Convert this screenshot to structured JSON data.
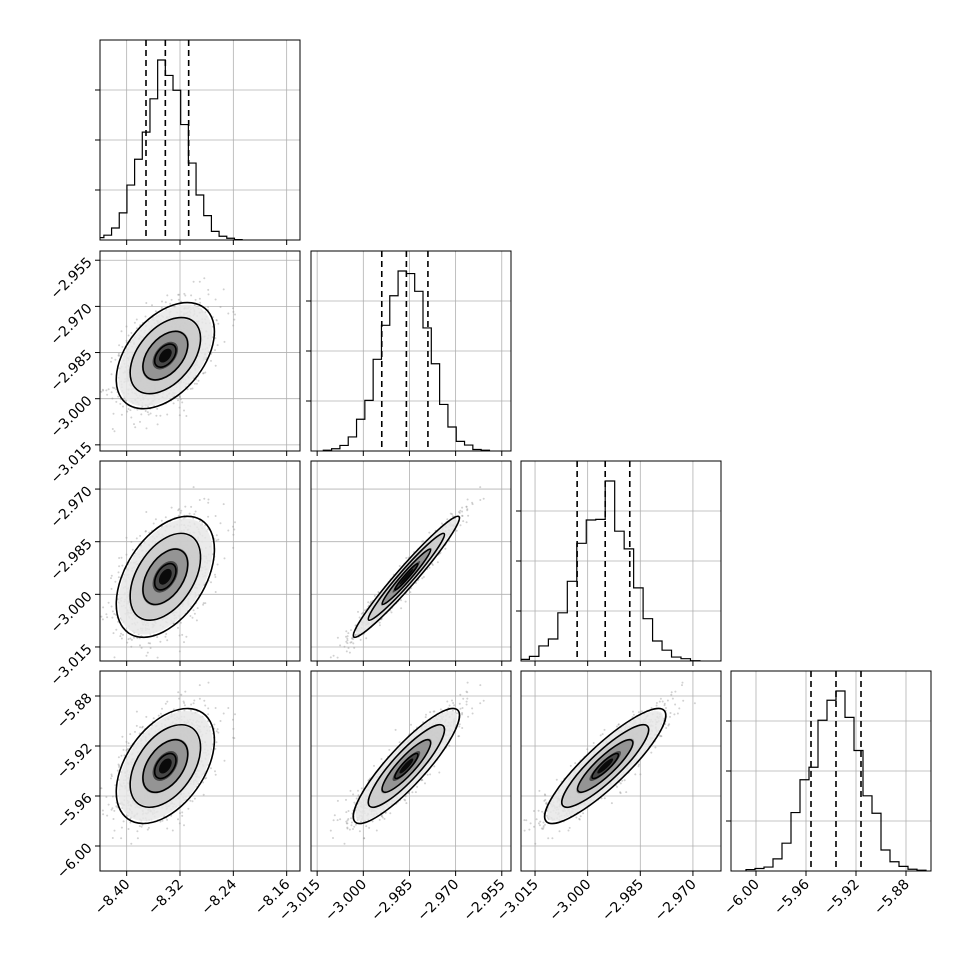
{
  "chart_data": {
    "type": "scatter",
    "title": "",
    "parameters": [
      {
        "label": "",
        "range": [
          -8.44,
          -8.14
        ],
        "ticks": [
          "−8.40",
          "−8.32",
          "−8.24",
          "−8.16"
        ],
        "tick_values": [
          -8.4,
          -8.32,
          -8.24,
          -8.16
        ],
        "quantiles": [
          -8.371,
          -8.342,
          -8.307
        ]
      },
      {
        "label": "",
        "range": [
          -3.017,
          -2.952
        ],
        "ticks": [
          "−3.015",
          "−3.000",
          "−2.985",
          "−2.970",
          "−2.955"
        ],
        "tick_values": [
          -3.015,
          -3.0,
          -2.985,
          -2.97,
          -2.955
        ],
        "quantiles": [
          -2.994,
          -2.986,
          -2.979
        ]
      },
      {
        "label": "",
        "range": [
          -3.019,
          -2.962
        ],
        "ticks": [
          "−3.015",
          "−3.000",
          "−2.985",
          "−2.970"
        ],
        "tick_values": [
          -3.015,
          -3.0,
          -2.985,
          -2.97
        ],
        "quantiles": [
          -3.003,
          -2.995,
          -2.988
        ]
      },
      {
        "label": "",
        "range": [
          -6.02,
          -5.86
        ],
        "ticks": [
          "−6.00",
          "−5.96",
          "−5.92",
          "−5.88"
        ],
        "tick_values": [
          -6.0,
          -5.96,
          -5.92,
          -5.88
        ],
        "quantiles": [
          -5.956,
          -5.936,
          -5.916
        ]
      }
    ],
    "grid": true,
    "legend": "none",
    "quantile_lines": "dashed",
    "contour_levels": 4
  },
  "colors": {
    "line": "#000000",
    "scatter": "#9a9a9a",
    "grid": "#b0b0b0",
    "background": "#ffffff"
  }
}
